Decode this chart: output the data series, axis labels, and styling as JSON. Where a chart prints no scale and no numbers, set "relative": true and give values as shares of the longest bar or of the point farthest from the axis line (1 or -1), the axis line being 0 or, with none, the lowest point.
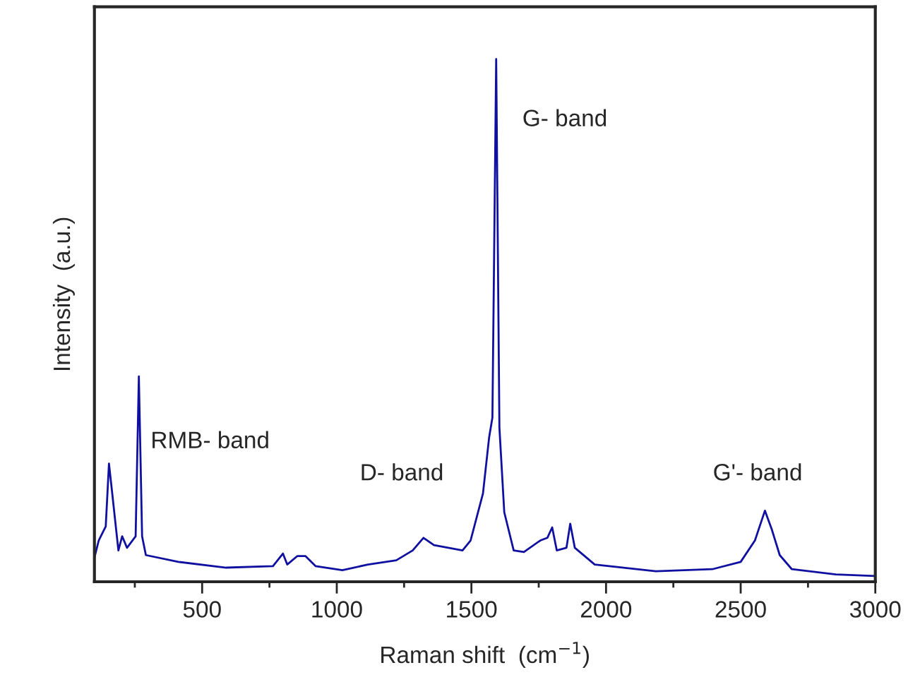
{
  "chart_data": {
    "type": "line",
    "relative": true,
    "xlabel": "Raman shift  (cm$^{−1}$)",
    "ylabel": "Intensity  (a.u.)",
    "xlim": [
      100,
      3000
    ],
    "xticks": [
      {
        "value": 250,
        "label": null
      },
      500,
      {
        "value": 750,
        "label": null
      },
      1000,
      {
        "value": 1250,
        "label": null
      },
      1500,
      {
        "value": 1750,
        "label": null
      },
      2000,
      {
        "value": 2250,
        "label": null
      },
      2500,
      {
        "value": 2750,
        "label": null
      },
      3000
    ],
    "grid": false,
    "legend": false,
    "marker": "none",
    "line_style": "solid",
    "series": [
      {
        "color": "#1010a0",
        "x": [
          100,
          116,
          142,
          154,
          164,
          189,
          203,
          221,
          253,
          265,
          277,
          291,
          412,
          589,
          763,
          800,
          816,
          853,
          884,
          921,
          1021,
          1116,
          1221,
          1282,
          1322,
          1361,
          1467,
          1497,
          1543,
          1566,
          1578,
          1592,
          1604,
          1622,
          1657,
          1695,
          1756,
          1782,
          1800,
          1817,
          1853,
          1867,
          1884,
          1958,
          2185,
          2395,
          2500,
          2553,
          2590,
          2615,
          2645,
          2690,
          2853,
          3000
        ],
        "values": [
          0.046,
          0.079,
          0.106,
          0.226,
          0.179,
          0.06,
          0.087,
          0.065,
          0.087,
          0.393,
          0.087,
          0.051,
          0.038,
          0.027,
          0.03,
          0.054,
          0.033,
          0.049,
          0.049,
          0.03,
          0.022,
          0.033,
          0.041,
          0.06,
          0.084,
          0.07,
          0.06,
          0.079,
          0.169,
          0.277,
          0.314,
          1.0,
          0.295,
          0.133,
          0.06,
          0.057,
          0.079,
          0.084,
          0.104,
          0.06,
          0.065,
          0.111,
          0.065,
          0.033,
          0.02,
          0.024,
          0.038,
          0.079,
          0.136,
          0.101,
          0.051,
          0.024,
          0.014,
          0.011
        ]
      }
    ],
    "annotations": [
      "RMB- band",
      "D- band",
      "G- band",
      "G'- band"
    ]
  }
}
